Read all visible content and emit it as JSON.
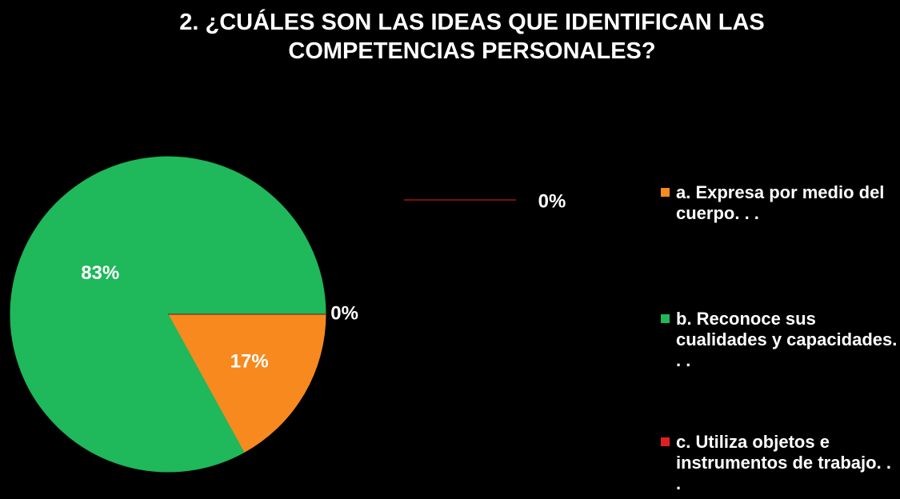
{
  "chart_data": {
    "type": "pie",
    "title": "2. ¿CUÁLES SON LAS IDEAS QUE IDENTIFICAN LAS COMPETENCIAS PERSONALES?",
    "categories": [
      "a. Expresa por medio del cuerpo. . .",
      "b. Reconoce sus cualidades y capacidades. . .",
      "c. Utiliza objetos e instrumentos de trabajo. . .",
      null
    ],
    "values": [
      17,
      83,
      0,
      0
    ],
    "value_labels": [
      "17%",
      "83%",
      "0%",
      "0%"
    ],
    "colors": [
      "#f7891f",
      "#1fb85a",
      "#e02020",
      "#7a1010"
    ],
    "legend": "right"
  }
}
